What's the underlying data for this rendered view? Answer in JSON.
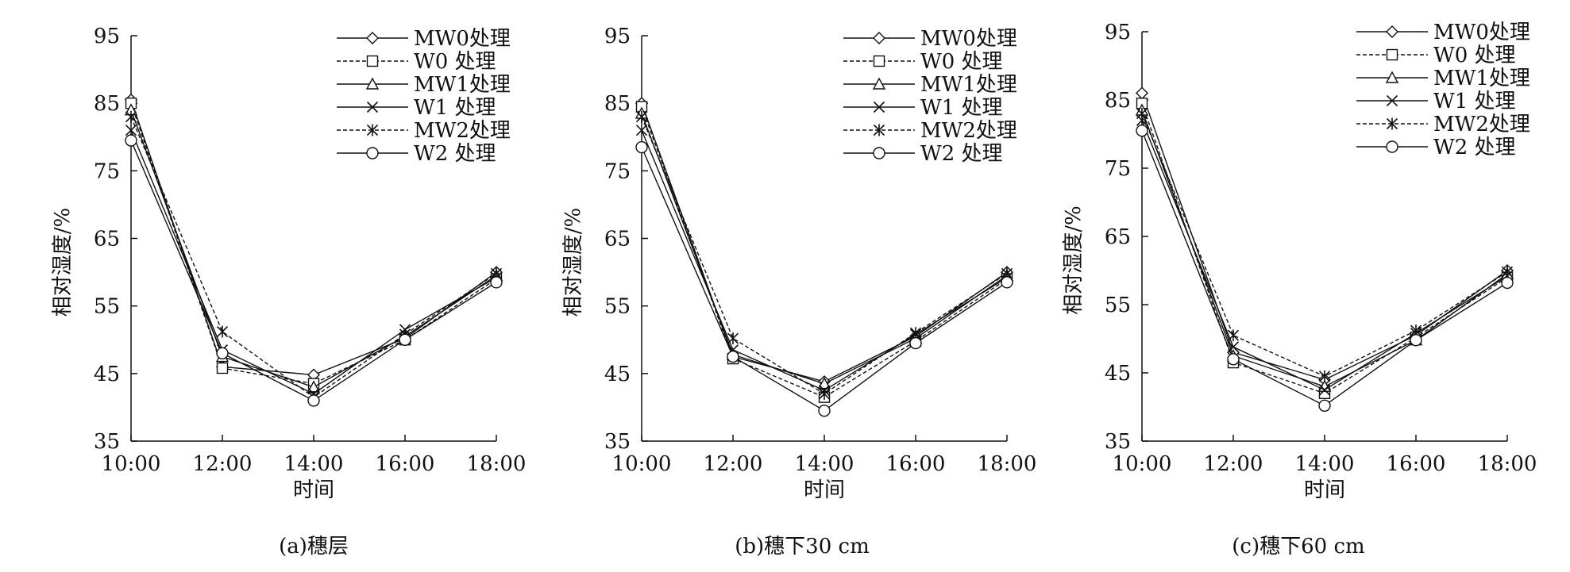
{
  "chart_data": [
    {
      "type": "line",
      "caption": "(a)穗层",
      "xlabel": "时间",
      "ylabel": "相对湿度/%",
      "categories": [
        "10:00",
        "12:00",
        "14:00",
        "16:00",
        "18:00"
      ],
      "yticks": [
        35,
        45,
        55,
        65,
        75,
        85,
        95
      ],
      "ylim": [
        35,
        95
      ],
      "legend_position": "top-right",
      "series": [
        {
          "name": "MW0处理",
          "marker": "diamond",
          "dash": "solid",
          "values": [
            85.5,
            46.0,
            44.8,
            50.2,
            60.0
          ]
        },
        {
          "name": "W0  处理",
          "marker": "square",
          "dash": "dashed",
          "values": [
            85.0,
            45.8,
            43.5,
            50.0,
            59.0
          ]
        },
        {
          "name": "MW1处理",
          "marker": "triangle",
          "dash": "solid",
          "values": [
            84.0,
            47.5,
            43.0,
            50.5,
            59.5
          ]
        },
        {
          "name": "W1  处理",
          "marker": "x",
          "dash": "solid",
          "values": [
            81.0,
            48.5,
            42.0,
            51.5,
            59.2
          ]
        },
        {
          "name": "MW2处理",
          "marker": "asterisk",
          "dash": "dashed",
          "values": [
            83.0,
            51.2,
            41.5,
            50.8,
            59.8
          ]
        },
        {
          "name": "W2  处理",
          "marker": "circle",
          "dash": "solid",
          "values": [
            79.5,
            48.0,
            41.0,
            50.0,
            58.5
          ]
        }
      ]
    },
    {
      "type": "line",
      "caption": "(b)穗下30 cm",
      "xlabel": "时间",
      "ylabel": "相对湿度/%",
      "categories": [
        "10:00",
        "12:00",
        "14:00",
        "16:00",
        "18:00"
      ],
      "yticks": [
        35,
        45,
        55,
        65,
        75,
        85,
        95
      ],
      "ylim": [
        35,
        95
      ],
      "legend_position": "top-right",
      "series": [
        {
          "name": "MW0处理",
          "marker": "diamond",
          "dash": "solid",
          "values": [
            85.0,
            47.5,
            43.8,
            50.5,
            60.0
          ]
        },
        {
          "name": "W0  处理",
          "marker": "square",
          "dash": "dashed",
          "values": [
            84.5,
            47.2,
            41.5,
            49.8,
            59.0
          ]
        },
        {
          "name": "MW1处理",
          "marker": "triangle",
          "dash": "solid",
          "values": [
            83.5,
            47.8,
            43.5,
            50.2,
            59.5
          ]
        },
        {
          "name": "W1  处理",
          "marker": "x",
          "dash": "solid",
          "values": [
            81.0,
            48.5,
            42.5,
            50.8,
            59.2
          ]
        },
        {
          "name": "MW2处理",
          "marker": "asterisk",
          "dash": "dashed",
          "values": [
            83.0,
            50.2,
            42.0,
            51.0,
            59.8
          ]
        },
        {
          "name": "W2  处理",
          "marker": "circle",
          "dash": "solid",
          "values": [
            78.5,
            47.5,
            39.5,
            49.5,
            58.5
          ]
        }
      ]
    },
    {
      "type": "line",
      "caption": "(c)穗下60 cm",
      "xlabel": "时间",
      "ylabel": "相对湿度/%",
      "categories": [
        "10:00",
        "12:00",
        "14:00",
        "16:00",
        "18:00"
      ],
      "yticks": [
        35,
        45,
        55,
        65,
        75,
        85,
        95
      ],
      "ylim": [
        35,
        95
      ],
      "legend_position": "top-right",
      "series": [
        {
          "name": "MW0处理",
          "marker": "diamond",
          "dash": "solid",
          "values": [
            86.0,
            48.0,
            44.0,
            50.5,
            60.0
          ]
        },
        {
          "name": "W0  处理",
          "marker": "square",
          "dash": "dashed",
          "values": [
            84.5,
            46.5,
            42.0,
            50.2,
            59.0
          ]
        },
        {
          "name": "MW1处理",
          "marker": "triangle",
          "dash": "solid",
          "values": [
            83.5,
            47.5,
            43.0,
            49.8,
            59.5
          ]
        },
        {
          "name": "W1  处理",
          "marker": "x",
          "dash": "solid",
          "values": [
            82.0,
            48.8,
            42.5,
            50.8,
            59.2
          ]
        },
        {
          "name": "MW2处理",
          "marker": "asterisk",
          "dash": "dashed",
          "values": [
            83.0,
            50.5,
            44.5,
            51.2,
            59.8
          ]
        },
        {
          "name": "W2  处理",
          "marker": "circle",
          "dash": "solid",
          "values": [
            80.5,
            47.0,
            40.2,
            49.8,
            58.2
          ]
        }
      ]
    }
  ]
}
